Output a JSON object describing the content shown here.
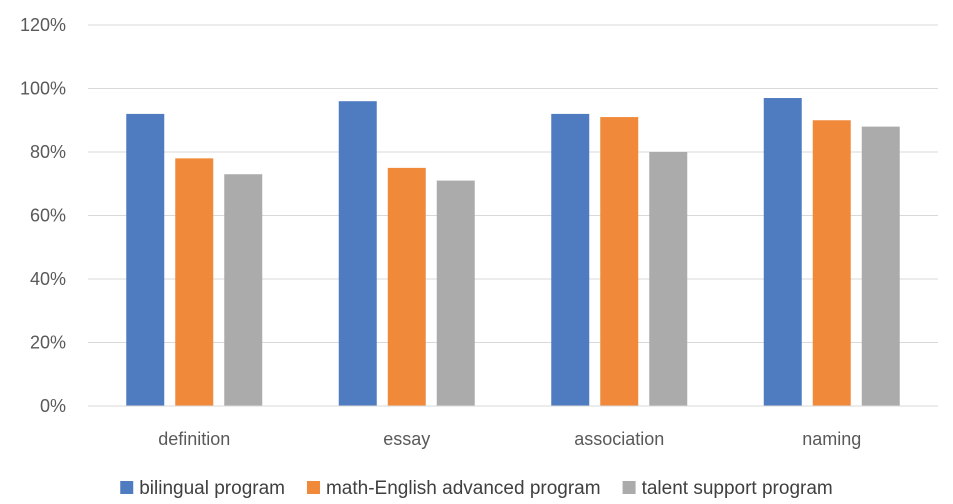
{
  "chart_data": {
    "type": "bar",
    "categories": [
      "definition",
      "essay",
      "association",
      "naming"
    ],
    "series": [
      {
        "name": "bilingual program",
        "color": "#4F7BC1",
        "values": [
          92,
          96,
          92,
          97
        ]
      },
      {
        "name": "math-English advanced program",
        "color": "#F08A3A",
        "values": [
          78,
          75,
          91,
          90
        ]
      },
      {
        "name": "talent support program",
        "color": "#ABABAB",
        "values": [
          73,
          71,
          80,
          88
        ]
      }
    ],
    "ylim": [
      0,
      120
    ],
    "yticks": [
      0,
      20,
      40,
      60,
      80,
      100,
      120
    ],
    "ytick_labels": [
      "0%",
      "20%",
      "40%",
      "60%",
      "80%",
      "100%",
      "120%"
    ],
    "grid": true,
    "gridline_color": "#D9D9D9",
    "legend_position": "bottom"
  }
}
